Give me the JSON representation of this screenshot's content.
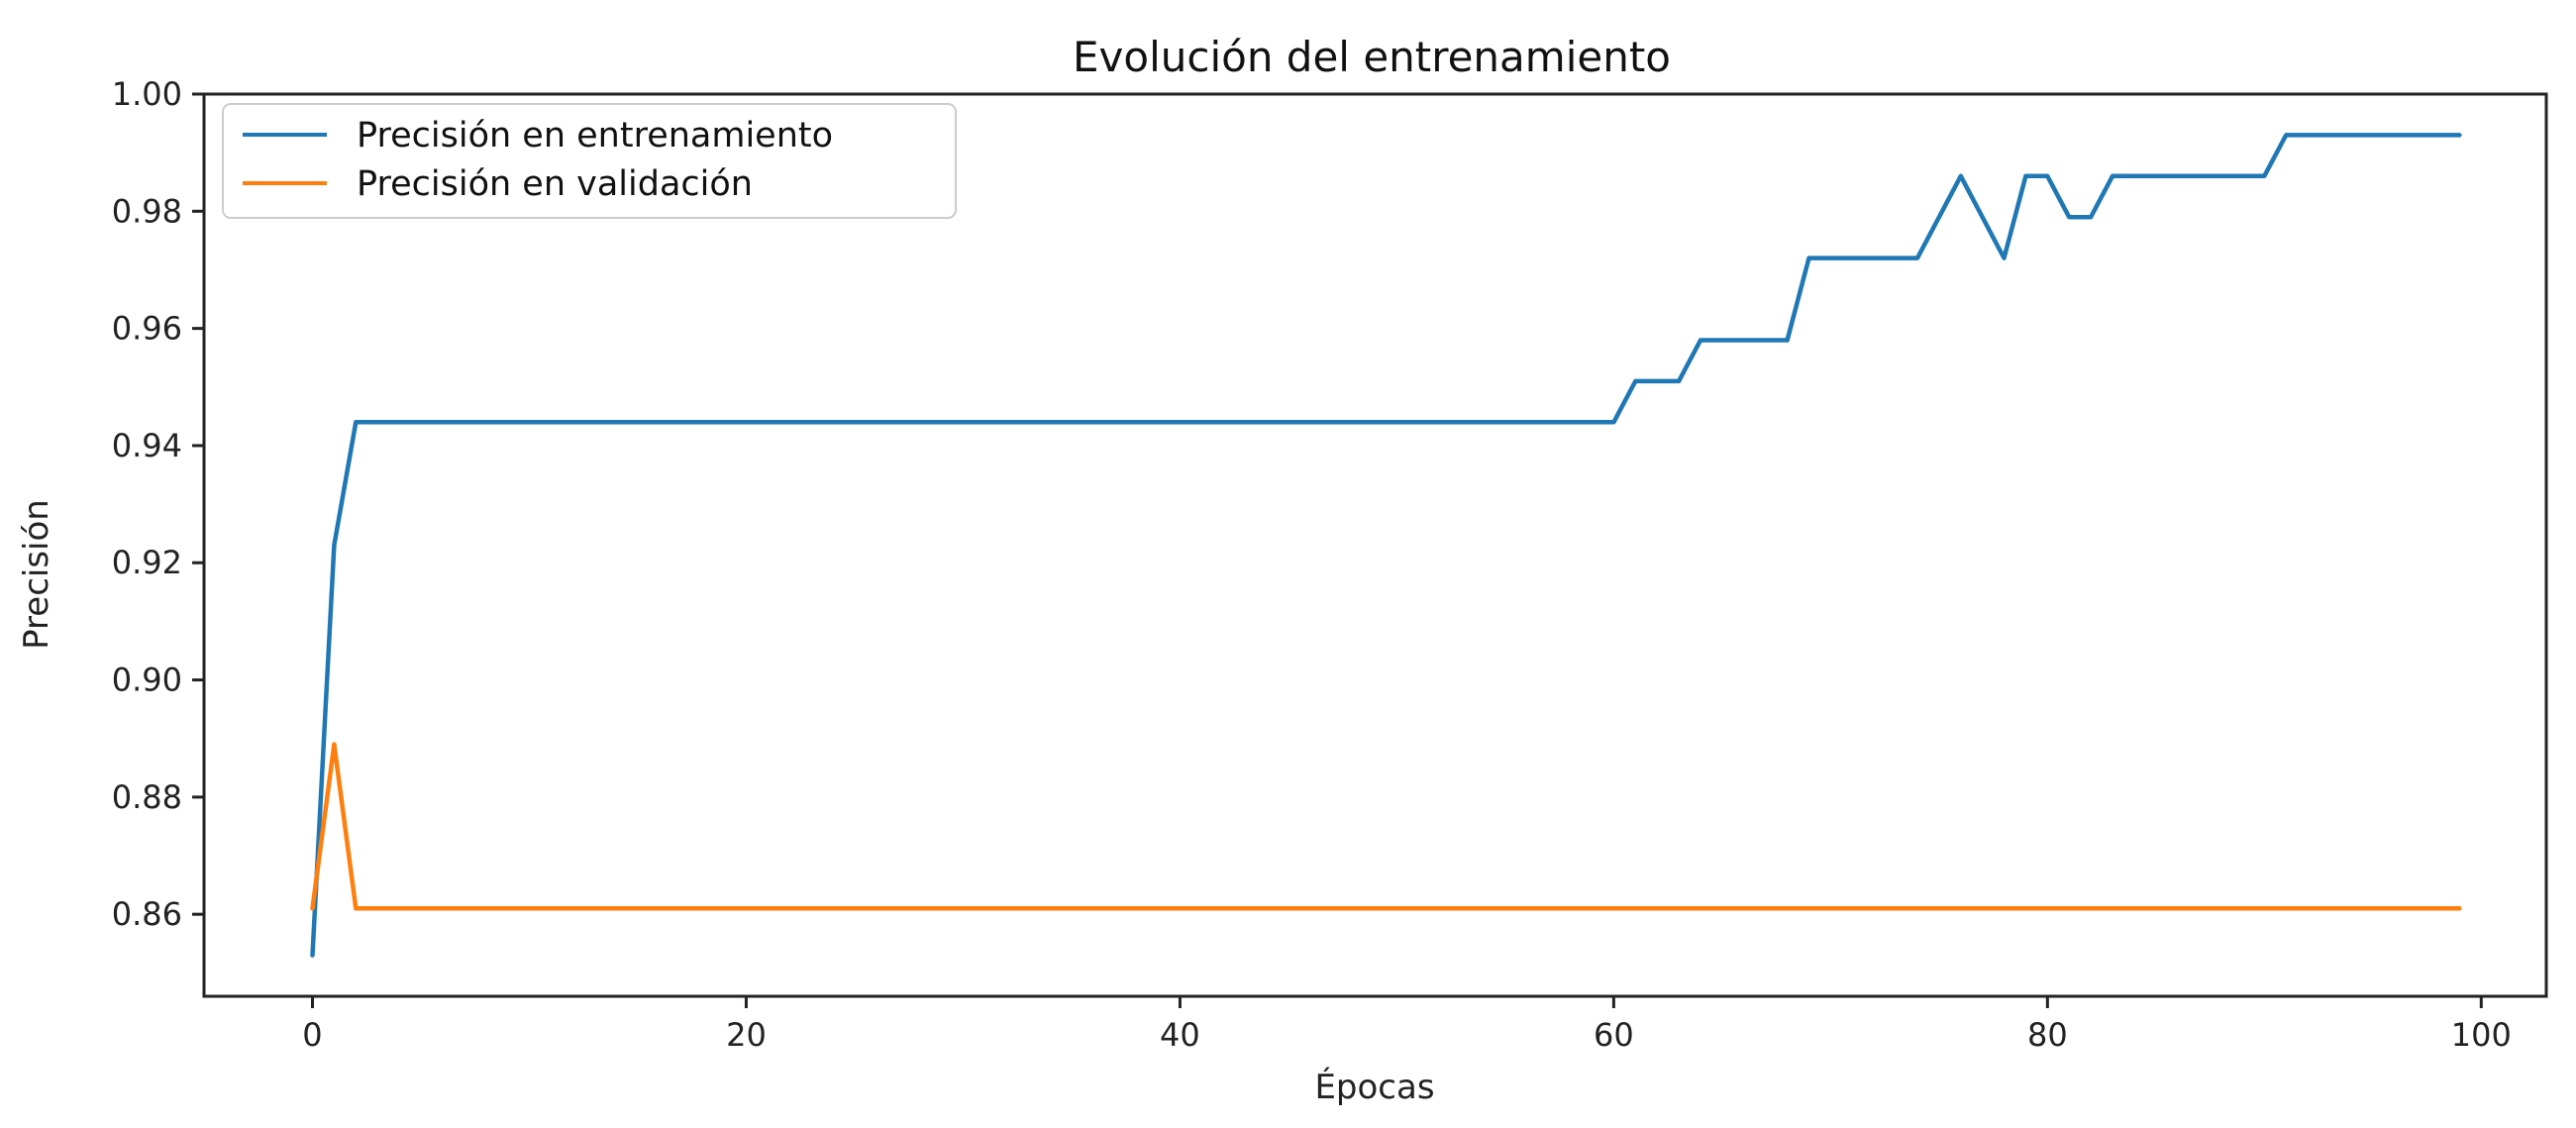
{
  "chart_data": {
    "type": "line",
    "title": "Evolución del entrenamiento",
    "xlabel": "Épocas",
    "ylabel": "Precisión",
    "xlim": [
      -5,
      103
    ],
    "ylim": [
      0.846,
      1.0
    ],
    "xticks": [
      0,
      20,
      40,
      60,
      80,
      100
    ],
    "yticks": [
      0.86,
      0.88,
      0.9,
      0.92,
      0.94,
      0.96,
      0.98,
      1.0
    ],
    "ytick_labels": [
      "0.86",
      "0.88",
      "0.90",
      "0.92",
      "0.94",
      "0.96",
      "0.98",
      "1.00"
    ],
    "grid": false,
    "legend_position": "top-left",
    "series": [
      {
        "name": "Precisión en entrenamiento",
        "color": "#1f77b4",
        "points": [
          [
            0,
            0.853
          ],
          [
            1,
            0.923
          ],
          [
            2,
            0.944
          ],
          [
            60,
            0.944
          ],
          [
            61,
            0.951
          ],
          [
            63,
            0.951
          ],
          [
            64,
            0.958
          ],
          [
            68,
            0.958
          ],
          [
            69,
            0.972
          ],
          [
            74,
            0.972
          ],
          [
            76,
            0.986
          ],
          [
            78,
            0.972
          ],
          [
            79,
            0.986
          ],
          [
            80,
            0.986
          ],
          [
            81,
            0.979
          ],
          [
            82,
            0.979
          ],
          [
            83,
            0.986
          ],
          [
            90,
            0.986
          ],
          [
            91,
            0.993
          ],
          [
            99,
            0.993
          ]
        ]
      },
      {
        "name": "Precisión en validación",
        "color": "#ff7f0e",
        "points": [
          [
            0,
            0.861
          ],
          [
            1,
            0.889
          ],
          [
            2,
            0.861
          ],
          [
            99,
            0.861
          ]
        ]
      }
    ]
  }
}
